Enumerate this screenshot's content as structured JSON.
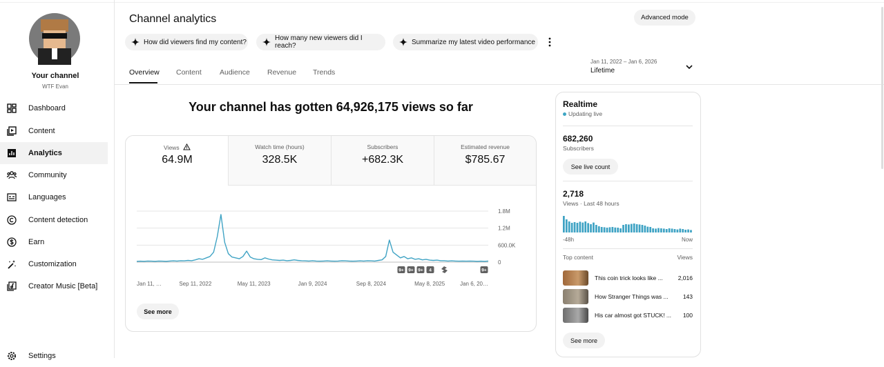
{
  "sidebar": {
    "channel_title": "Your channel",
    "channel_name": "WTF Evan",
    "nav": [
      "Dashboard",
      "Content",
      "Analytics",
      "Community",
      "Languages",
      "Content detection",
      "Earn",
      "Customization",
      "Creator Music [Beta]"
    ],
    "settings": "Settings"
  },
  "header": {
    "title": "Channel analytics",
    "advanced_mode": "Advanced mode",
    "prompts": [
      "How did viewers find my content?",
      "How many new viewers did I reach?",
      "Summarize my latest video performance"
    ],
    "tabs": [
      "Overview",
      "Content",
      "Audience",
      "Revenue",
      "Trends"
    ],
    "date_range": "Jan 11, 2022 – Jan 6, 2026",
    "period": "Lifetime"
  },
  "overview": {
    "headline": "Your channel has gotten 64,926,175 views so far",
    "metrics": [
      {
        "label": "Views",
        "value": "64.9M"
      },
      {
        "label": "Watch time (hours)",
        "value": "328.5K"
      },
      {
        "label": "Subscribers",
        "value": "+682.3K"
      },
      {
        "label": "Estimated revenue",
        "value": "$785.67"
      }
    ],
    "see_more": "See more"
  },
  "realtime": {
    "title": "Realtime",
    "status": "Updating live",
    "subscribers": "682,260",
    "subscribers_label": "Subscribers",
    "see_live_count": "See live count",
    "views": "2,718",
    "views_label": "Views · Last 48 hours",
    "top_content_label": "Top content",
    "views_column": "Views",
    "top_content": [
      {
        "title": "This coin trick looks like ...",
        "views": "2,016"
      },
      {
        "title": "How Stranger Things was ...",
        "views": "143"
      },
      {
        "title": "His car almost got STUCK! ...",
        "views": "100"
      }
    ],
    "see_more": "See more"
  },
  "chart_data": [
    {
      "type": "line",
      "color": "#3fa3c4",
      "categories": [
        "Jan 11, …",
        null,
        null,
        null,
        null,
        null,
        null,
        null,
        null,
        null,
        null,
        null,
        null,
        null,
        null,
        null,
        "Sep 11, 2022",
        null,
        null,
        null,
        null,
        null,
        null,
        null,
        null,
        null,
        null,
        null,
        null,
        null,
        null,
        null,
        "May 11, 2023",
        null,
        null,
        null,
        null,
        null,
        null,
        null,
        null,
        null,
        null,
        null,
        null,
        null,
        null,
        null,
        "Jan 9, 2024",
        null,
        null,
        null,
        null,
        null,
        null,
        null,
        null,
        null,
        null,
        null,
        null,
        null,
        null,
        null,
        "Sep 8, 2024",
        null,
        null,
        null,
        null,
        null,
        null,
        null,
        null,
        null,
        null,
        null,
        null,
        null,
        null,
        null,
        "May 8, 2025",
        null,
        null,
        null,
        null,
        null,
        null,
        null,
        null,
        null,
        null,
        null,
        null,
        null,
        null,
        null,
        "Jan 6, 20…"
      ],
      "values": [
        30000,
        35000,
        30000,
        40000,
        35000,
        30000,
        40000,
        35000,
        30000,
        40000,
        45000,
        40000,
        50000,
        45000,
        60000,
        50000,
        80000,
        120000,
        100000,
        150000,
        200000,
        350000,
        900000,
        1680000,
        700000,
        300000,
        180000,
        150000,
        120000,
        200000,
        390000,
        180000,
        120000,
        100000,
        90000,
        150000,
        110000,
        80000,
        70000,
        60000,
        70000,
        50000,
        60000,
        80000,
        60000,
        50000,
        45000,
        40000,
        50000,
        40000,
        35000,
        40000,
        45000,
        40000,
        35000,
        40000,
        50000,
        45000,
        40000,
        35000,
        40000,
        45000,
        40000,
        50000,
        45000,
        40000,
        60000,
        80000,
        200000,
        780000,
        350000,
        250000,
        150000,
        200000,
        120000,
        150000,
        100000,
        120000,
        80000,
        100000,
        70000,
        60000,
        70000,
        50000,
        50000,
        40000,
        45000,
        40000,
        35000,
        40000,
        35000,
        40000,
        35000,
        30000,
        35000,
        30000,
        40000
      ],
      "ylim": [
        0,
        1800000
      ],
      "yticks": [
        0,
        {
          "value": 600000,
          "label": "600.0K"
        },
        {
          "value": 1200000,
          "label": "1.2M"
        },
        {
          "value": 1800000,
          "label": "1.8M"
        }
      ],
      "grid": true,
      "annotations": [
        "9+",
        "9+",
        "9+",
        "4",
        "9+"
      ]
    },
    {
      "type": "bar",
      "color": "#3fa3c4",
      "categories": [
        "-48h",
        null,
        null,
        null,
        null,
        null,
        null,
        null,
        null,
        null,
        null,
        null,
        null,
        null,
        null,
        null,
        null,
        null,
        null,
        null,
        null,
        null,
        null,
        null,
        null,
        null,
        null,
        null,
        null,
        null,
        null,
        null,
        null,
        null,
        null,
        null,
        null,
        null,
        null,
        null,
        null,
        null,
        null,
        null,
        null,
        null,
        null,
        "Now"
      ],
      "values": [
        120,
        95,
        80,
        70,
        75,
        70,
        78,
        72,
        80,
        68,
        60,
        72,
        55,
        45,
        40,
        38,
        35,
        38,
        40,
        36,
        35,
        30,
        55,
        60,
        58,
        62,
        65,
        60,
        58,
        55,
        50,
        42,
        40,
        30,
        28,
        32,
        30,
        28,
        25,
        30,
        28,
        25,
        22,
        28,
        25,
        20,
        22,
        18
      ]
    }
  ]
}
